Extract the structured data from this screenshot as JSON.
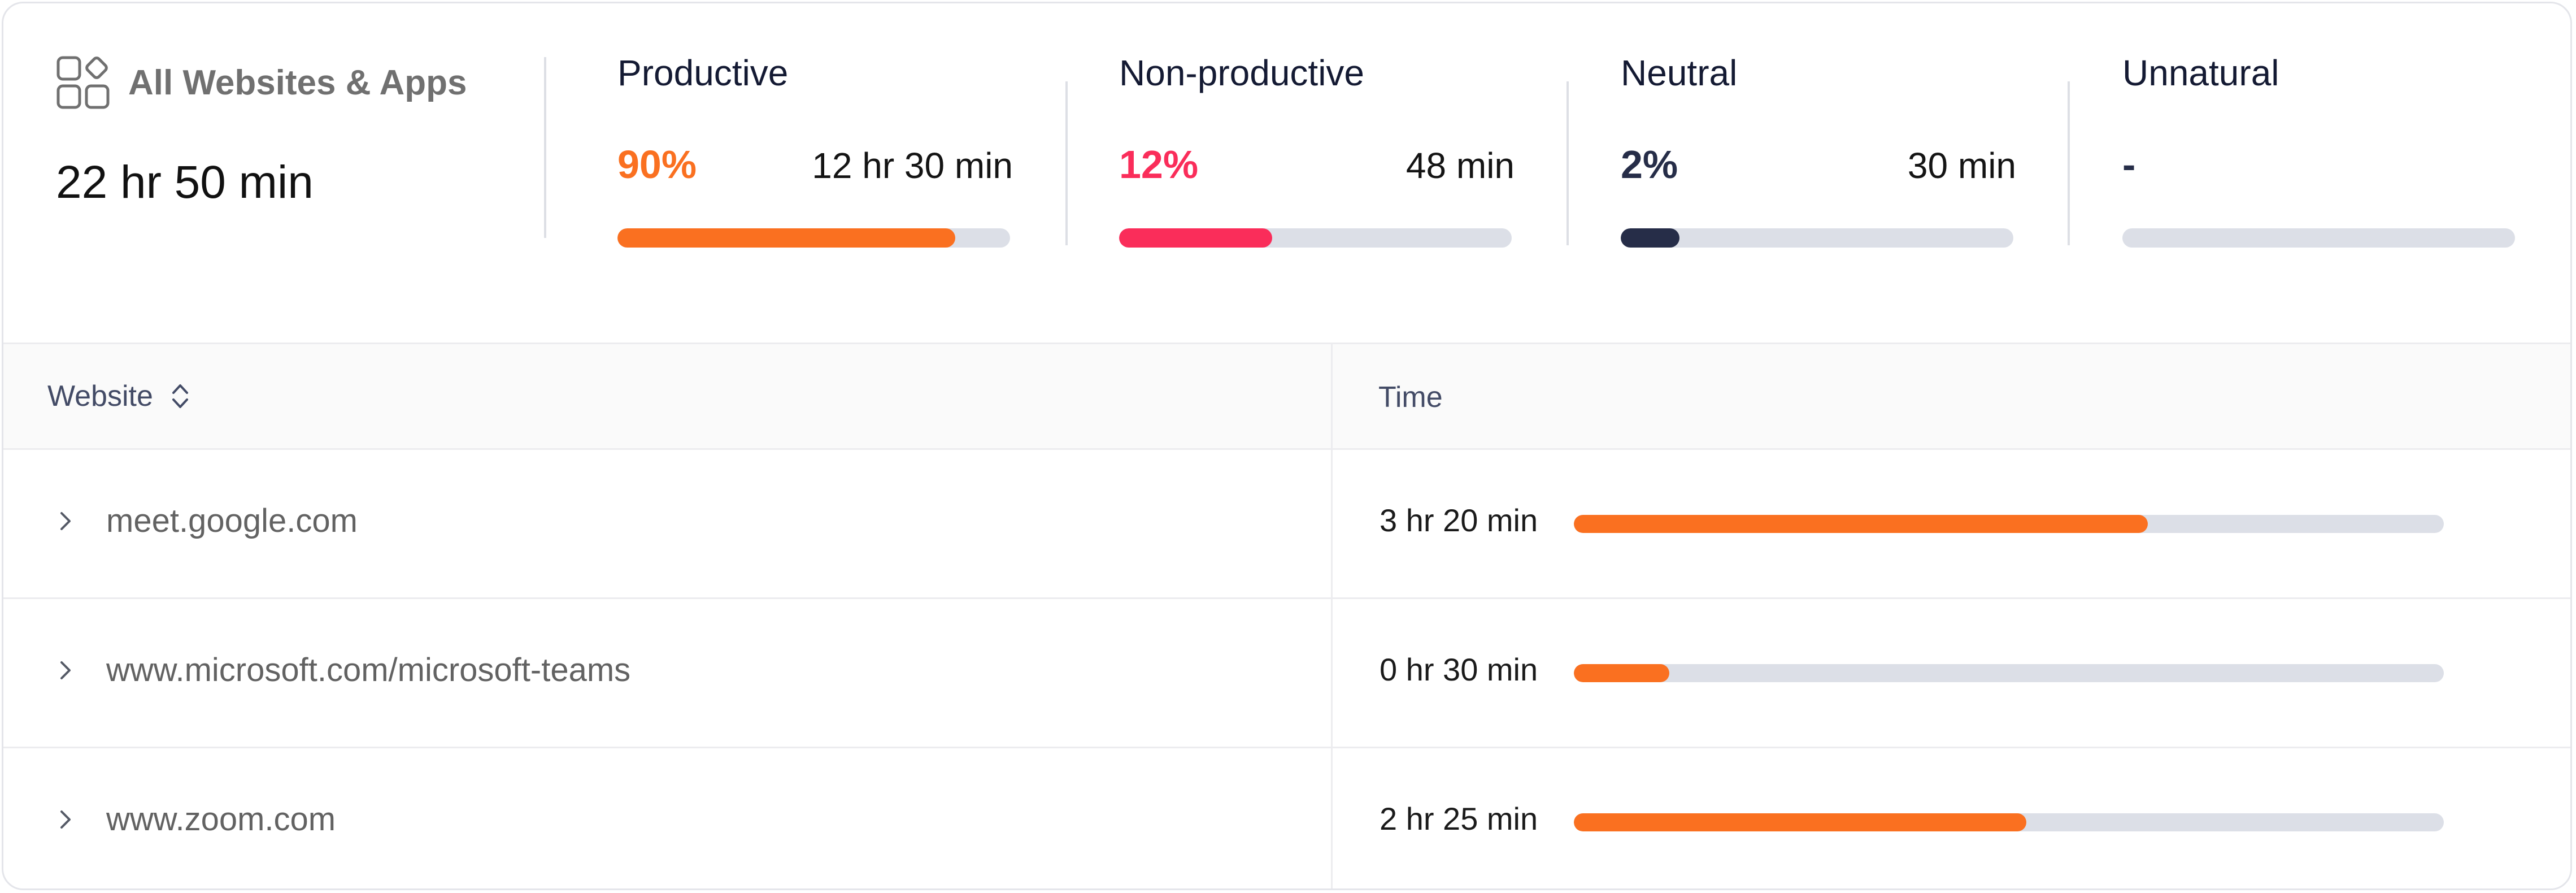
{
  "summary": {
    "all_label": "All Websites & Apps",
    "all_icon": "apps-grid-icon",
    "total_time": "22 hr 50 min",
    "categories": [
      {
        "label": "Productive",
        "percent": "90%",
        "time": "12 hr 30 min",
        "fill_fraction": 0.86,
        "color": "#fa7020"
      },
      {
        "label": "Non-productive",
        "percent": "12%",
        "time": "48 min",
        "fill_fraction": 0.39,
        "color": "#fa2d5a"
      },
      {
        "label": "Neutral",
        "percent": "2%",
        "time": "30 min",
        "fill_fraction": 0.15,
        "color": "#262d48"
      },
      {
        "label": "Unnatural",
        "percent": "-",
        "time": "",
        "fill_fraction": 0,
        "color": "#262d48"
      }
    ]
  },
  "table": {
    "headers": {
      "website": "Website",
      "time": "Time"
    },
    "sort_icon": "sort-updown-icon",
    "rows": [
      {
        "site": "meet.google.com",
        "time": "3 hr 20 min",
        "fill_fraction": 0.66
      },
      {
        "site": "www.microsoft.com/microsoft-teams",
        "time": "0 hr 30 min",
        "fill_fraction": 0.11
      },
      {
        "site": "www.zoom.com",
        "time": "2 hr 25 min",
        "fill_fraction": 0.52
      }
    ]
  },
  "colors": {
    "productive": "#fa7020",
    "non_productive": "#fa2d5a",
    "neutral": "#262d48",
    "track": "#dcdfe7"
  }
}
